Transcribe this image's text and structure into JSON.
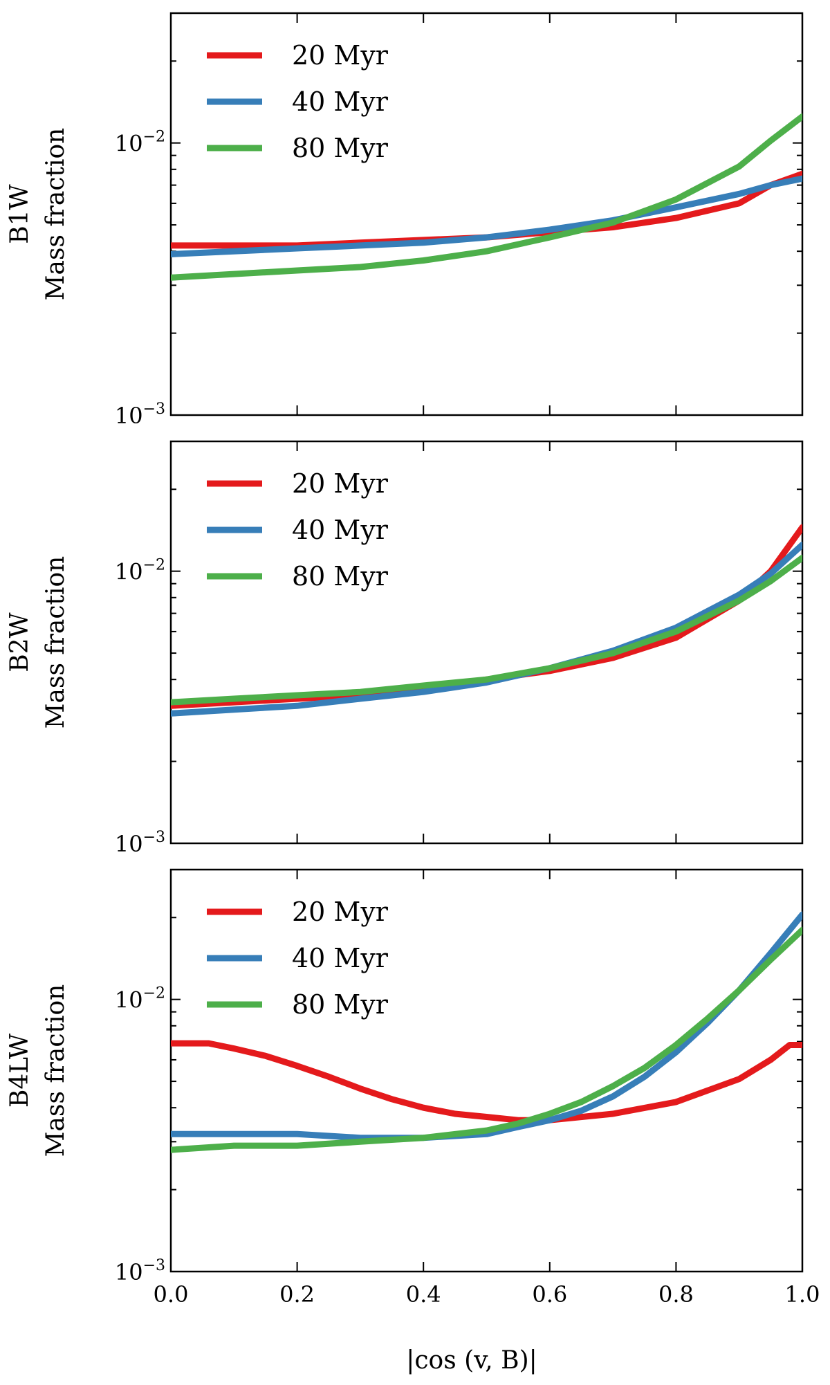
{
  "chart_data": [
    {
      "type": "line",
      "panel_label": "B1W",
      "ylabel": "Mass fraction",
      "xlabel": "",
      "xlim": [
        0.0,
        1.0
      ],
      "ylim": [
        0.001,
        0.03
      ],
      "yscale": "log",
      "grid": false,
      "legend_position": "top-left",
      "x_ticks": [
        "",
        "",
        "",
        "",
        "",
        ""
      ],
      "y_ticks": [
        {
          "value": 0.001,
          "label": "10",
          "exp": "−3"
        },
        {
          "value": 0.01,
          "label": "10",
          "exp": "−2"
        }
      ],
      "series": [
        {
          "name": "20 Myr",
          "color": "#e41a1c",
          "x": [
            0.0,
            0.1,
            0.2,
            0.3,
            0.4,
            0.5,
            0.6,
            0.7,
            0.8,
            0.9,
            0.95,
            1.0
          ],
          "values": [
            0.0042,
            0.0042,
            0.0042,
            0.0043,
            0.0044,
            0.0045,
            0.0047,
            0.0049,
            0.0053,
            0.006,
            0.007,
            0.0077
          ]
        },
        {
          "name": "40 Myr",
          "color": "#377eb8",
          "x": [
            0.0,
            0.1,
            0.2,
            0.3,
            0.4,
            0.5,
            0.6,
            0.7,
            0.8,
            0.9,
            0.95,
            1.0
          ],
          "values": [
            0.0039,
            0.004,
            0.0041,
            0.0042,
            0.0043,
            0.0045,
            0.0048,
            0.0052,
            0.0058,
            0.0065,
            0.007,
            0.0074
          ]
        },
        {
          "name": "80 Myr",
          "color": "#4daf4a",
          "x": [
            0.0,
            0.1,
            0.2,
            0.3,
            0.4,
            0.5,
            0.6,
            0.7,
            0.8,
            0.9,
            0.95,
            1.0
          ],
          "values": [
            0.0032,
            0.0033,
            0.0034,
            0.0035,
            0.0037,
            0.004,
            0.0045,
            0.0051,
            0.0062,
            0.0082,
            0.0102,
            0.0125
          ]
        }
      ]
    },
    {
      "type": "line",
      "panel_label": "B2W",
      "ylabel": "Mass fraction",
      "xlabel": "",
      "xlim": [
        0.0,
        1.0
      ],
      "ylim": [
        0.001,
        0.03
      ],
      "yscale": "log",
      "grid": false,
      "legend_position": "top-left",
      "x_ticks": [
        "",
        "",
        "",
        "",
        "",
        ""
      ],
      "y_ticks": [
        {
          "value": 0.001,
          "label": "10",
          "exp": "−3"
        },
        {
          "value": 0.01,
          "label": "10",
          "exp": "−2"
        }
      ],
      "series": [
        {
          "name": "20 Myr",
          "color": "#e41a1c",
          "x": [
            0.0,
            0.1,
            0.2,
            0.3,
            0.4,
            0.5,
            0.6,
            0.7,
            0.8,
            0.9,
            0.95,
            1.0
          ],
          "values": [
            0.0032,
            0.0033,
            0.0034,
            0.0035,
            0.0037,
            0.004,
            0.0043,
            0.0048,
            0.0057,
            0.0078,
            0.01,
            0.0145
          ]
        },
        {
          "name": "40 Myr",
          "color": "#377eb8",
          "x": [
            0.0,
            0.1,
            0.2,
            0.3,
            0.4,
            0.5,
            0.6,
            0.7,
            0.8,
            0.9,
            0.95,
            1.0
          ],
          "values": [
            0.003,
            0.0031,
            0.0032,
            0.0034,
            0.0036,
            0.0039,
            0.0044,
            0.0051,
            0.0062,
            0.0082,
            0.0098,
            0.0125
          ]
        },
        {
          "name": "80 Myr",
          "color": "#4daf4a",
          "x": [
            0.0,
            0.1,
            0.2,
            0.3,
            0.4,
            0.5,
            0.6,
            0.7,
            0.8,
            0.9,
            0.95,
            1.0
          ],
          "values": [
            0.0033,
            0.0034,
            0.0035,
            0.0036,
            0.0038,
            0.004,
            0.0044,
            0.005,
            0.006,
            0.0078,
            0.0092,
            0.0112
          ]
        }
      ]
    },
    {
      "type": "line",
      "panel_label": "B4LW",
      "ylabel": "Mass fraction",
      "xlabel": "|cos (v, B)|",
      "xlim": [
        0.0,
        1.0
      ],
      "ylim": [
        0.001,
        0.03
      ],
      "yscale": "log",
      "grid": false,
      "legend_position": "top-left",
      "x_ticks": [
        "0.0",
        "0.2",
        "0.4",
        "0.6",
        "0.8",
        "1.0"
      ],
      "y_ticks": [
        {
          "value": 0.001,
          "label": "10",
          "exp": "−3"
        },
        {
          "value": 0.01,
          "label": "10",
          "exp": "−2"
        }
      ],
      "series": [
        {
          "name": "20 Myr",
          "color": "#e41a1c",
          "x": [
            0.0,
            0.03,
            0.06,
            0.1,
            0.15,
            0.2,
            0.25,
            0.3,
            0.35,
            0.4,
            0.45,
            0.5,
            0.55,
            0.6,
            0.7,
            0.8,
            0.9,
            0.95,
            0.98,
            1.0
          ],
          "values": [
            0.0069,
            0.0069,
            0.0069,
            0.0066,
            0.0062,
            0.0057,
            0.0052,
            0.0047,
            0.0043,
            0.004,
            0.0038,
            0.0037,
            0.0036,
            0.0036,
            0.0038,
            0.0042,
            0.0051,
            0.006,
            0.0068,
            0.0068
          ]
        },
        {
          "name": "40 Myr",
          "color": "#377eb8",
          "x": [
            0.0,
            0.1,
            0.2,
            0.3,
            0.4,
            0.5,
            0.55,
            0.6,
            0.65,
            0.7,
            0.75,
            0.8,
            0.85,
            0.9,
            0.95,
            1.0
          ],
          "values": [
            0.0032,
            0.0032,
            0.0032,
            0.0031,
            0.0031,
            0.0032,
            0.0034,
            0.0036,
            0.0039,
            0.0044,
            0.0052,
            0.0064,
            0.0082,
            0.0108,
            0.0148,
            0.0205
          ]
        },
        {
          "name": "80 Myr",
          "color": "#4daf4a",
          "x": [
            0.0,
            0.1,
            0.2,
            0.3,
            0.4,
            0.5,
            0.55,
            0.6,
            0.65,
            0.7,
            0.75,
            0.8,
            0.85,
            0.9,
            0.95,
            1.0
          ],
          "values": [
            0.0028,
            0.0029,
            0.0029,
            0.003,
            0.0031,
            0.0033,
            0.0035,
            0.0038,
            0.0042,
            0.0048,
            0.0056,
            0.0068,
            0.0085,
            0.0108,
            0.014,
            0.018
          ]
        }
      ]
    }
  ]
}
